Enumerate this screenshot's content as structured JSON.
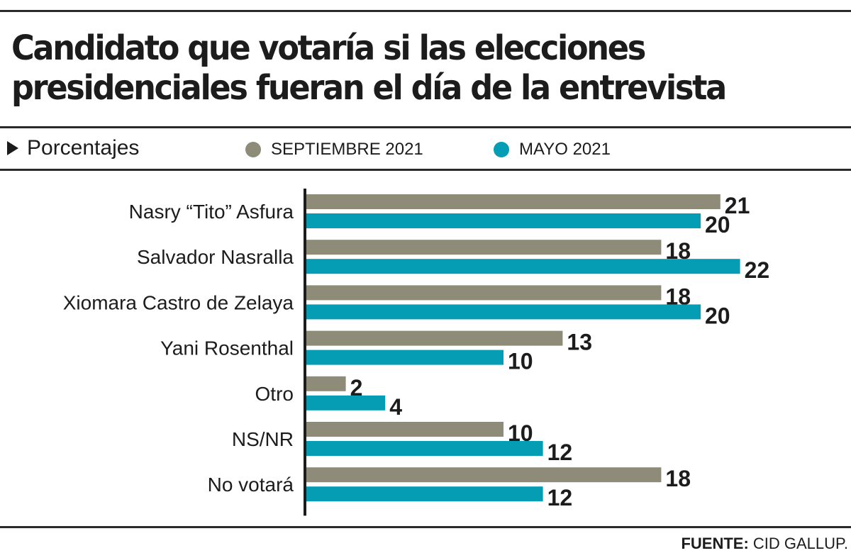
{
  "header": {
    "title_line1": "Candidato que votaría si las elecciones",
    "title_line2": "presidenciales fueran el día de la entrevista",
    "subtitle": "Porcentajes"
  },
  "legend": [
    {
      "label": "SEPTIEMBRE 2021",
      "color": "#8e8b79"
    },
    {
      "label": "MAYO 2021",
      "color": "#049db4"
    }
  ],
  "source": {
    "label": "FUENTE:",
    "value": "CID GALLUP."
  },
  "chart_data": {
    "type": "bar",
    "orientation": "horizontal",
    "title": "Candidato que votaría si las elecciones presidenciales fueran el día de la entrevista",
    "subtitle": "Porcentajes",
    "xlabel": "",
    "ylabel": "",
    "xlim": [
      0,
      22
    ],
    "grid": false,
    "legend_position": "top",
    "categories": [
      "Nasry “Tito” Asfura",
      "Salvador Nasralla",
      "Xiomara Castro de Zelaya",
      "Yani Rosenthal",
      "Otro",
      "NS/NR",
      "No votará"
    ],
    "series": [
      {
        "name": "SEPTIEMBRE 2021",
        "color": "#8e8b79",
        "values": [
          21,
          18,
          18,
          13,
          2,
          10,
          18
        ]
      },
      {
        "name": "MAYO 2021",
        "color": "#049db4",
        "values": [
          20,
          22,
          20,
          10,
          4,
          12,
          12
        ]
      }
    ]
  }
}
